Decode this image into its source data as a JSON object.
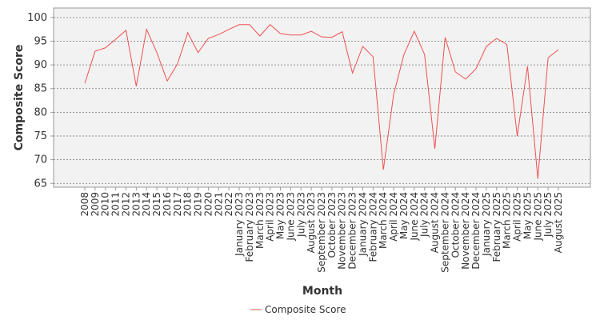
{
  "chart_data": {
    "type": "line",
    "x_label": "Month",
    "y_label": "Composite Score",
    "categories": [
      "2008",
      "2009",
      "2010",
      "2011",
      "2012",
      "2013",
      "2014",
      "2015",
      "2016",
      "2017",
      "2018",
      "2019",
      "2020",
      "2021",
      "2022",
      "January 2023",
      "February 2023",
      "March 2023",
      "April 2023",
      "May 2023",
      "June 2023",
      "July 2023",
      "August 2023",
      "September 2023",
      "October 2023",
      "November 2023",
      "December 2023",
      "January 2024",
      "February 2024",
      "March 2024",
      "April 2024",
      "May 2024",
      "June 2024",
      "July 2024",
      "August 2024",
      "September 2024",
      "October 2024",
      "November 2024",
      "December 2024",
      "January 2025",
      "February 2025",
      "March 2025",
      "April 2025",
      "May 2025",
      "June 2025",
      "July 2025",
      "August 2025"
    ],
    "series": [
      {
        "name": "Composite Score",
        "color": "#f05050",
        "values": [
          86.1,
          92.9,
          93.6,
          95.4,
          97.3,
          85.5,
          97.5,
          92.6,
          86.6,
          90.2,
          96.8,
          92.6,
          95.6,
          96.4,
          97.5,
          98.5,
          98.5,
          96.1,
          98.5,
          96.6,
          96.3,
          96.3,
          97.1,
          95.9,
          95.8,
          97.0,
          88.3,
          93.9,
          91.7,
          67.9,
          83.8,
          92.2,
          97.1,
          92.2,
          72.3,
          95.8,
          88.5,
          87.0,
          89.2,
          93.9,
          95.6,
          94.3,
          75.0,
          89.7,
          66.0,
          91.5,
          93.2
        ]
      }
    ],
    "ylim": [
      64.2,
      102
    ],
    "yticks": [
      65,
      70,
      75,
      80,
      85,
      90,
      95,
      100
    ],
    "grid": true,
    "legend": "bottom"
  }
}
